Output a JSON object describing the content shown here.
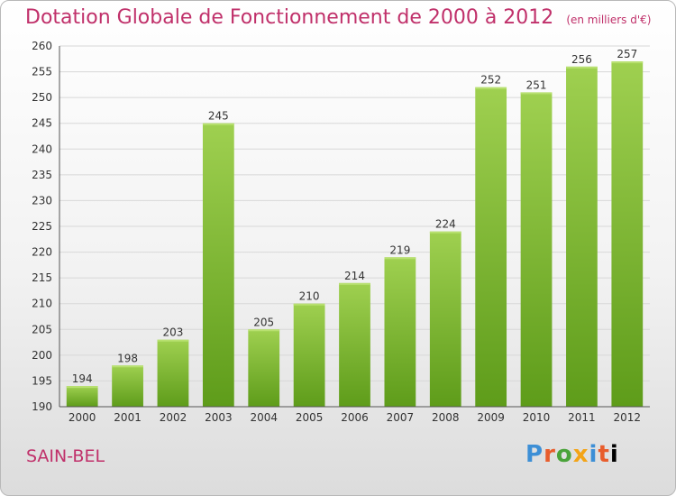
{
  "header": {
    "title": "Dotation Globale de Fonctionnement de 2000 à 2012",
    "unit": "(en milliers d'€)"
  },
  "footer": {
    "city": "SAIN-BEL",
    "logo": "Proxiti"
  },
  "colors": {
    "title": "#c0306a",
    "bar_top": "#9fd050",
    "bar_bottom": "#5e9c1a",
    "grid": "#d8d8d8"
  },
  "chart_data": {
    "type": "bar",
    "title": "Dotation Globale de Fonctionnement de 2000 à 2012",
    "subtitle": "(en milliers d'€)",
    "xlabel": "",
    "ylabel": "",
    "categories": [
      "2000",
      "2001",
      "2002",
      "2003",
      "2004",
      "2005",
      "2006",
      "2007",
      "2008",
      "2009",
      "2010",
      "2011",
      "2012"
    ],
    "values": [
      194,
      198,
      203,
      245,
      205,
      210,
      214,
      219,
      224,
      252,
      251,
      256,
      257
    ],
    "ylim": [
      190,
      260
    ],
    "yticks": [
      190,
      195,
      200,
      205,
      210,
      215,
      220,
      225,
      230,
      235,
      240,
      245,
      250,
      255,
      260
    ],
    "grid": true,
    "data_labels": true
  }
}
